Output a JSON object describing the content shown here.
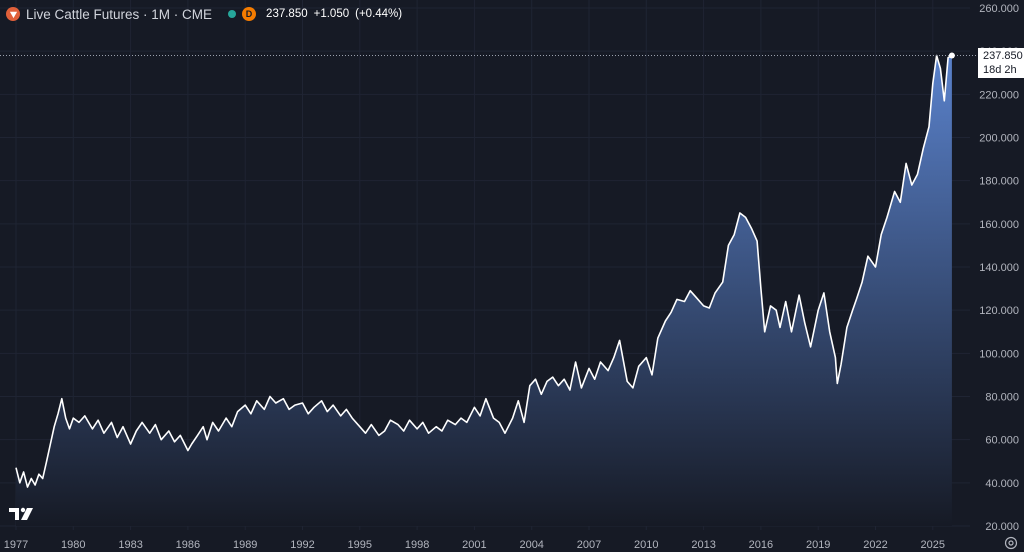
{
  "header": {
    "symbol_title": "Live Cattle Futures · 1M · CME",
    "badge_letter": "D",
    "price": "237.850",
    "change": "+1.050",
    "change_pct": "(+0.44%)"
  },
  "last_price": {
    "value": "237.850",
    "countdown": "18d 2h"
  },
  "colors": {
    "background": "#161a25",
    "line": "#ffffff",
    "area_top": "#5a82cc",
    "area_bottom": "#161a25",
    "grid": "#1f2433"
  },
  "chart_data": {
    "type": "area",
    "title": "Live Cattle Futures · 1M · CME",
    "xlabel": "",
    "ylabel": "",
    "ylim": [
      20,
      260
    ],
    "y_ticks": [
      "260.000",
      "240.000",
      "220.000",
      "200.000",
      "180.000",
      "160.000",
      "140.000",
      "120.000",
      "100.000",
      "80.000",
      "60.000",
      "40.000",
      "20.000"
    ],
    "x_ticks": [
      "1977",
      "1980",
      "1983",
      "1986",
      "1989",
      "1992",
      "1995",
      "1998",
      "2001",
      "2004",
      "2007",
      "2010",
      "2013",
      "2016",
      "2019",
      "2022",
      "2025"
    ],
    "grid": true,
    "series": [
      {
        "x": [
          1977.0,
          1977.2,
          1977.4,
          1977.6,
          1977.8,
          1978.0,
          1978.2,
          1978.4,
          1978.6,
          1978.8,
          1979.0,
          1979.2,
          1979.4,
          1979.6,
          1979.8,
          1980.0,
          1980.3,
          1980.6,
          1981.0,
          1981.3,
          1981.6,
          1982.0,
          1982.3,
          1982.6,
          1983.0,
          1983.3,
          1983.6,
          1984.0,
          1984.3,
          1984.6,
          1985.0,
          1985.3,
          1985.6,
          1986.0,
          1986.2,
          1986.5,
          1986.8,
          1987.0,
          1987.3,
          1987.6,
          1988.0,
          1988.3,
          1988.6,
          1989.0,
          1989.3,
          1989.6,
          1990.0,
          1990.3,
          1990.6,
          1991.0,
          1991.3,
          1991.6,
          1992.0,
          1992.3,
          1992.6,
          1993.0,
          1993.3,
          1993.6,
          1994.0,
          1994.3,
          1994.6,
          1995.0,
          1995.3,
          1995.6,
          1996.0,
          1996.3,
          1996.6,
          1997.0,
          1997.3,
          1997.6,
          1998.0,
          1998.3,
          1998.6,
          1999.0,
          1999.3,
          1999.6,
          2000.0,
          2000.3,
          2000.6,
          2001.0,
          2001.3,
          2001.6,
          2002.0,
          2002.3,
          2002.6,
          2003.0,
          2003.3,
          2003.6,
          2003.9,
          2004.2,
          2004.5,
          2004.8,
          2005.1,
          2005.4,
          2005.7,
          2006.0,
          2006.3,
          2006.6,
          2007.0,
          2007.3,
          2007.6,
          2008.0,
          2008.3,
          2008.6,
          2009.0,
          2009.3,
          2009.6,
          2010.0,
          2010.3,
          2010.6,
          2011.0,
          2011.3,
          2011.6,
          2012.0,
          2012.3,
          2012.6,
          2013.0,
          2013.3,
          2013.6,
          2014.0,
          2014.3,
          2014.6,
          2014.9,
          2015.2,
          2015.5,
          2015.8,
          2016.0,
          2016.2,
          2016.5,
          2016.8,
          2017.0,
          2017.3,
          2017.6,
          2018.0,
          2018.3,
          2018.6,
          2019.0,
          2019.3,
          2019.6,
          2019.9,
          2020.0,
          2020.2,
          2020.5,
          2020.8,
          2021.0,
          2021.3,
          2021.6,
          2022.0,
          2022.3,
          2022.6,
          2023.0,
          2023.3,
          2023.6,
          2023.9,
          2024.2,
          2024.5,
          2024.8,
          2025.0,
          2025.2,
          2025.4,
          2025.6,
          2025.8,
          2026.0
        ],
        "values": [
          47,
          40,
          45,
          38,
          42,
          39,
          44,
          42,
          50,
          58,
          66,
          72,
          79,
          70,
          65,
          70,
          68,
          71,
          65,
          69,
          63,
          68,
          61,
          66,
          58,
          64,
          68,
          63,
          67,
          60,
          64,
          59,
          62,
          55,
          58,
          62,
          66,
          60,
          68,
          64,
          70,
          66,
          73,
          76,
          72,
          78,
          74,
          80,
          77,
          79,
          74,
          76,
          77,
          72,
          75,
          78,
          73,
          76,
          71,
          74,
          70,
          66,
          63,
          67,
          62,
          64,
          69,
          67,
          64,
          69,
          65,
          68,
          63,
          66,
          64,
          69,
          67,
          70,
          68,
          75,
          71,
          79,
          70,
          68,
          63,
          70,
          78,
          68,
          85,
          88,
          81,
          87,
          89,
          85,
          88,
          83,
          96,
          84,
          93,
          88,
          96,
          92,
          98,
          106,
          87,
          84,
          94,
          98,
          90,
          107,
          115,
          119,
          125,
          124,
          129,
          126,
          122,
          121,
          128,
          133,
          150,
          155,
          165,
          163,
          158,
          152,
          130,
          110,
          122,
          120,
          112,
          124,
          110,
          127,
          114,
          103,
          120,
          128,
          110,
          98,
          86,
          95,
          112,
          120,
          125,
          133,
          145,
          140,
          155,
          163,
          175,
          170,
          188,
          178,
          183,
          195,
          205,
          225,
          238,
          232,
          217,
          237,
          238
        ]
      }
    ]
  }
}
